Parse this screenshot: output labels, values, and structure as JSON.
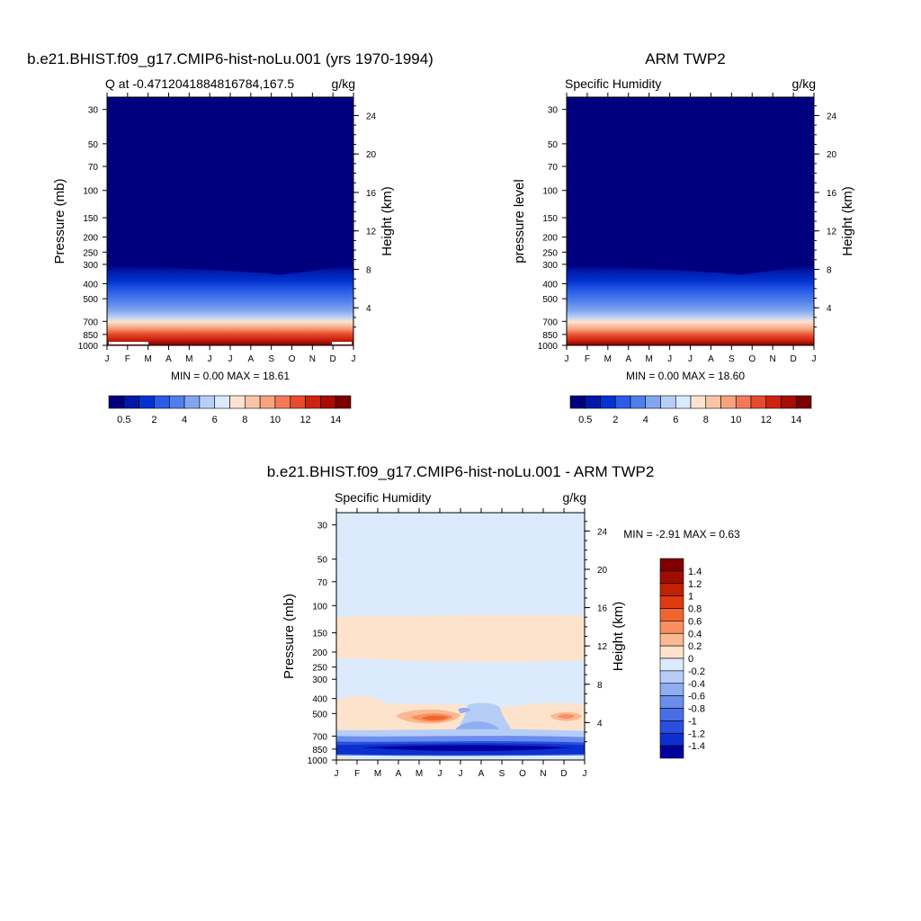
{
  "chart_data": [
    {
      "type": "heatmap",
      "title": "b.e21.BHIST.f09_g17.CMIP6-hist-noLu.001 (yrs 1970-1994)",
      "subtitle_left": "Q at -0.4712041884816784,167.5",
      "subtitle_right": "g/kg",
      "ylabel": "Pressure (mb)",
      "y2label": "Height (km)",
      "x_ticks": [
        "J",
        "F",
        "M",
        "A",
        "M",
        "J",
        "J",
        "A",
        "S",
        "O",
        "N",
        "D",
        "J"
      ],
      "y_ticks": [
        30,
        50,
        70,
        100,
        150,
        200,
        250,
        300,
        400,
        500,
        700,
        850,
        1000
      ],
      "y2_ticks": [
        24,
        20,
        16,
        12,
        8,
        4
      ],
      "ylim": [
        1000,
        25
      ],
      "y_scale": "log",
      "min_max_text": "MIN =   0.00 MAX =  18.61",
      "colorbar": {
        "orientation": "horizontal",
        "labels": [
          "0.5",
          "2",
          "4",
          "6",
          "8",
          "10",
          "12",
          "14"
        ],
        "colors": [
          "#00007f",
          "#0018a8",
          "#0232d0",
          "#2a5ce8",
          "#4f7fea",
          "#82a6ee",
          "#b6cff6",
          "#daeaff",
          "#fde3d0",
          "#f9c4a7",
          "#f6a37e",
          "#f27a58",
          "#e74b2b",
          "#cc2411",
          "#a70c05",
          "#7c0000"
        ]
      }
    },
    {
      "type": "heatmap",
      "title": "ARM TWP2",
      "subtitle_left": "Specific Humidity",
      "subtitle_right": "g/kg",
      "ylabel": "pressure level",
      "y2label": "Height (km)",
      "x_ticks": [
        "J",
        "F",
        "M",
        "A",
        "M",
        "J",
        "J",
        "A",
        "S",
        "O",
        "N",
        "D",
        "J"
      ],
      "y_ticks": [
        30,
        50,
        70,
        100,
        150,
        200,
        250,
        300,
        400,
        500,
        700,
        850,
        1000
      ],
      "y2_ticks": [
        24,
        20,
        16,
        12,
        8,
        4
      ],
      "ylim": [
        1000,
        25
      ],
      "y_scale": "log",
      "min_max_text": "MIN =   0.00 MAX =  18.60",
      "colorbar": {
        "orientation": "horizontal",
        "labels": [
          "0.5",
          "2",
          "4",
          "6",
          "8",
          "10",
          "12",
          "14"
        ],
        "colors": [
          "#00007f",
          "#0018a8",
          "#0232d0",
          "#2a5ce8",
          "#4f7fea",
          "#82a6ee",
          "#b6cff6",
          "#daeaff",
          "#fde3d0",
          "#f9c4a7",
          "#f6a37e",
          "#f27a58",
          "#e74b2b",
          "#cc2411",
          "#a70c05",
          "#7c0000"
        ]
      }
    },
    {
      "type": "heatmap",
      "title": "b.e21.BHIST.f09_g17.CMIP6-hist-noLu.001 - ARM TWP2",
      "subtitle_left": "Specific Humidity",
      "subtitle_right": "g/kg",
      "ylabel": "Pressure (mb)",
      "y2label": "Height (km)",
      "x_ticks": [
        "J",
        "F",
        "M",
        "A",
        "M",
        "J",
        "J",
        "A",
        "S",
        "O",
        "N",
        "D",
        "J"
      ],
      "y_ticks": [
        30,
        50,
        70,
        100,
        150,
        200,
        250,
        300,
        400,
        500,
        700,
        850,
        1000
      ],
      "y2_ticks": [
        24,
        20,
        16,
        12,
        8,
        4
      ],
      "ylim": [
        1000,
        25
      ],
      "y_scale": "log",
      "min_max_text": "MIN =  -2.91 MAX =   0.63",
      "colorbar": {
        "orientation": "vertical",
        "labels": [
          "1.4",
          "1.2",
          "1",
          "0.8",
          "0.6",
          "0.4",
          "0.2",
          "0",
          "-0.2",
          "-0.4",
          "-0.6",
          "-0.8",
          "-1",
          "-1.2",
          "-1.4"
        ],
        "colors": [
          "#7f0000",
          "#a00d00",
          "#c12200",
          "#e03b10",
          "#f2642f",
          "#f78f5e",
          "#fbb893",
          "#fde3cc",
          "#dbeafd",
          "#b5cdf7",
          "#8faef2",
          "#6b8eec",
          "#4a6ee7",
          "#2a4fdf",
          "#0b30cf",
          "#00009a"
        ]
      }
    }
  ]
}
